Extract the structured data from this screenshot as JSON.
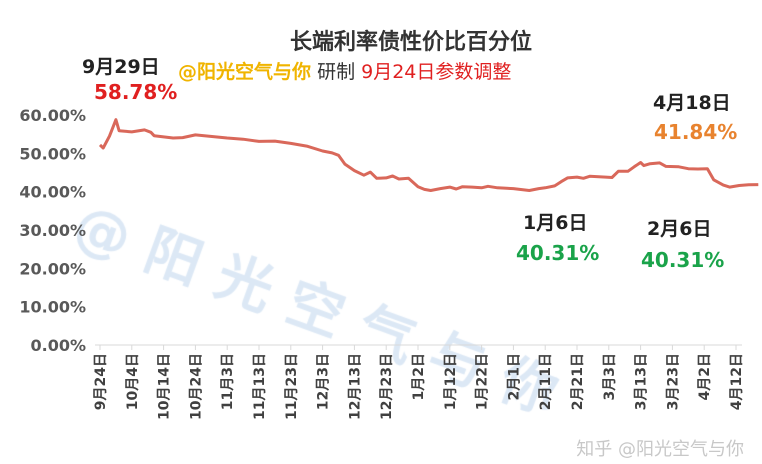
{
  "chart_data": {
    "type": "line",
    "title": "长端利率债性价比百分位",
    "subtitle": {
      "author": "@阳光空气与你",
      "made": "研制",
      "note": "9月24日参数调整"
    },
    "xlabel": "",
    "ylabel": "",
    "ylim": [
      0,
      60
    ],
    "y_ticks": [
      "0.00%",
      "10.00%",
      "20.00%",
      "30.00%",
      "40.00%",
      "50.00%",
      "60.00%"
    ],
    "x_tick_labels": [
      "9月24日",
      "10月4日",
      "10月14日",
      "10月24日",
      "11月3日",
      "11月13日",
      "11月23日",
      "12月3日",
      "12月13日",
      "12月23日",
      "1月2日",
      "1月12日",
      "1月22日",
      "2月1日",
      "2月11日",
      "2月21日",
      "3月3日",
      "3月13日",
      "3月23日",
      "4月2日",
      "4月12日"
    ],
    "grid": false,
    "line_color": "#d9685a",
    "series": [
      {
        "points": [
          [
            "09-24",
            52.2
          ],
          [
            "09-25",
            51.4
          ],
          [
            "09-27",
            54.5
          ],
          [
            "09-29",
            58.78
          ],
          [
            "09-30",
            55.9
          ],
          [
            "10-04",
            55.6
          ],
          [
            "10-08",
            56.1
          ],
          [
            "10-10",
            55.5
          ],
          [
            "10-11",
            54.6
          ],
          [
            "10-14",
            54.3
          ],
          [
            "10-17",
            54.0
          ],
          [
            "10-20",
            54.1
          ],
          [
            "10-24",
            54.8
          ],
          [
            "10-28",
            54.5
          ],
          [
            "11-03",
            54.0
          ],
          [
            "11-08",
            53.7
          ],
          [
            "11-13",
            53.1
          ],
          [
            "11-18",
            53.2
          ],
          [
            "11-23",
            52.6
          ],
          [
            "11-28",
            51.9
          ],
          [
            "12-03",
            50.6
          ],
          [
            "12-06",
            50.1
          ],
          [
            "12-08",
            49.5
          ],
          [
            "12-10",
            47.2
          ],
          [
            "12-13",
            45.5
          ],
          [
            "12-16",
            44.3
          ],
          [
            "12-18",
            45.1
          ],
          [
            "12-20",
            43.5
          ],
          [
            "12-23",
            43.6
          ],
          [
            "12-25",
            44.1
          ],
          [
            "12-27",
            43.3
          ],
          [
            "12-30",
            43.5
          ],
          [
            "01-02",
            41.3
          ],
          [
            "01-04",
            40.6
          ],
          [
            "01-06",
            40.31
          ],
          [
            "01-09",
            40.8
          ],
          [
            "01-12",
            41.2
          ],
          [
            "01-14",
            40.7
          ],
          [
            "01-16",
            41.3
          ],
          [
            "01-19",
            41.2
          ],
          [
            "01-22",
            41.0
          ],
          [
            "01-24",
            41.4
          ],
          [
            "01-27",
            41.0
          ],
          [
            "02-01",
            40.8
          ],
          [
            "02-06",
            40.31
          ],
          [
            "02-09",
            40.8
          ],
          [
            "02-11",
            41.0
          ],
          [
            "02-14",
            41.5
          ],
          [
            "02-16",
            42.6
          ],
          [
            "02-18",
            43.6
          ],
          [
            "02-21",
            43.8
          ],
          [
            "02-23",
            43.5
          ],
          [
            "02-25",
            44.0
          ],
          [
            "03-01",
            43.8
          ],
          [
            "03-03",
            43.7
          ],
          [
            "03-05",
            45.3
          ],
          [
            "03-08",
            45.3
          ],
          [
            "03-10",
            46.5
          ],
          [
            "03-12",
            47.6
          ],
          [
            "03-13",
            46.8
          ],
          [
            "03-15",
            47.3
          ],
          [
            "03-18",
            47.5
          ],
          [
            "03-20",
            46.6
          ],
          [
            "03-24",
            46.5
          ],
          [
            "03-27",
            46.0
          ],
          [
            "03-30",
            45.9
          ],
          [
            "04-02",
            46.0
          ],
          [
            "04-04",
            43.1
          ],
          [
            "04-07",
            41.7
          ],
          [
            "04-09",
            41.2
          ],
          [
            "04-12",
            41.6
          ],
          [
            "04-15",
            41.8
          ],
          [
            "04-18",
            41.84
          ]
        ]
      }
    ],
    "annotations": [
      {
        "date_label": "9月29日",
        "value_label": "58.78%",
        "color": "#e02020"
      },
      {
        "date_label": "4月18日",
        "value_label": "41.84%",
        "color": "#e8832f"
      },
      {
        "date_label": "1月6日",
        "value_label": "40.31%",
        "color": "#1aa34a"
      },
      {
        "date_label": "2月6日",
        "value_label": "40.31%",
        "color": "#1aa34a"
      }
    ],
    "watermark": "@ 阳 光 空 气 与 你"
  },
  "footer": {
    "source": "知乎 @阳光空气与你"
  }
}
